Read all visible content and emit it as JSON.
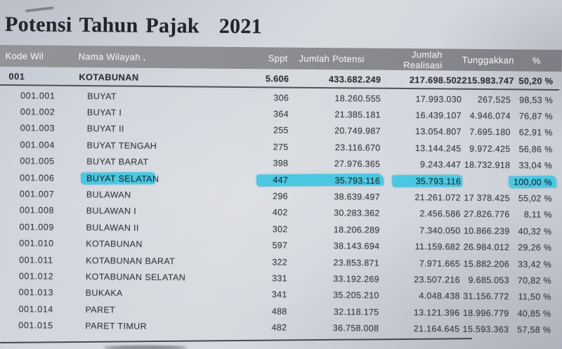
{
  "title": {
    "text": "Potensi Tahun Pajak",
    "year": "2021"
  },
  "table": {
    "headers": {
      "kode": "Kode Wil",
      "nama": "Nama Wilayah ,",
      "sppt": "Sppt",
      "potensi": "Jumlah Potensi",
      "realisasi": "Jumlah Realisasi",
      "tunggakkan": "Tunggakkan",
      "pct": "%"
    },
    "summary": {
      "kode": "001",
      "nama": "KOTABUNAN",
      "sppt": "5.606",
      "potensi": "433.682.249",
      "realisasi": "217.698.502",
      "tunggakkan": "215.983.747",
      "pct": "50,20 %"
    },
    "rows": [
      {
        "kode": "001.001",
        "nama": "BUYAT",
        "sppt": "306",
        "potensi": "18.260.555",
        "realisasi": "17.993.030",
        "tunggakkan": "267.525",
        "pct": "98,53 %",
        "highlight": false
      },
      {
        "kode": "001.002",
        "nama": "BUYAT I",
        "sppt": "364",
        "potensi": "21.385.181",
        "realisasi": "16.439.107",
        "tunggakkan": "4.946.074",
        "pct": "76,87 %",
        "highlight": false
      },
      {
        "kode": "001.003",
        "nama": "BUYAT II",
        "sppt": "255",
        "potensi": "20.749.987",
        "realisasi": "13.054.807",
        "tunggakkan": "7.695.180",
        "pct": "62,91 %",
        "highlight": false
      },
      {
        "kode": "001.004",
        "nama": "BUYAT TENGAH",
        "sppt": "275",
        "potensi": "23.116.670",
        "realisasi": "13.144.245",
        "tunggakkan": "9.972.425",
        "pct": "56,86 %",
        "highlight": false
      },
      {
        "kode": "001.005",
        "nama": "BUYAT BARAT",
        "sppt": "398",
        "potensi": "27.976.365",
        "realisasi": "9.243.447",
        "tunggakkan": "18.732.918",
        "pct": "33,04 %",
        "highlight": false
      },
      {
        "kode": "001.006",
        "nama": "BUYAT SELATAN",
        "sppt": "447",
        "potensi": "35.793.116",
        "realisasi": "35.793.116",
        "tunggakkan": "",
        "pct": "100,00 %",
        "highlight": true
      },
      {
        "kode": "001.007",
        "nama": "BULAWAN",
        "sppt": "296",
        "potensi": "38.639.497",
        "realisasi": "21.261.072",
        "tunggakkan": "17 378.425",
        "pct": "55,02 %",
        "highlight": false
      },
      {
        "kode": "001.008",
        "nama": "BULAWAN I",
        "sppt": "402",
        "potensi": "30.283.362",
        "realisasi": "2.456.586",
        "tunggakkan": "27.826.776",
        "pct": "8,11 %",
        "highlight": false
      },
      {
        "kode": "001.009",
        "nama": "BULAWAN II",
        "sppt": "302",
        "potensi": "18.206.289",
        "realisasi": "7.340.050",
        "tunggakkan": "10.866.239",
        "pct": "40,32 %",
        "highlight": false
      },
      {
        "kode": "001.010",
        "nama": "KOTABUNAN",
        "sppt": "597",
        "potensi": "38.143.694",
        "realisasi": "11.159.682",
        "tunggakkan": "26.984.012",
        "pct": "29,26 %",
        "highlight": false
      },
      {
        "kode": "001.011",
        "nama": "KOTABUNAN BARAT",
        "sppt": "322",
        "potensi": "23.853.871",
        "realisasi": "7.971.665",
        "tunggakkan": "15.882.206",
        "pct": "33,42 %",
        "highlight": false
      },
      {
        "kode": "001.012",
        "nama": "KOTABUNAN SELATAN",
        "sppt": "331",
        "potensi": "33.192.269",
        "realisasi": "23.507.216",
        "tunggakkan": "9.685.053",
        "pct": "70,82 %",
        "highlight": false
      },
      {
        "kode": "001.013",
        "nama": "BUKAKA",
        "sppt": "341",
        "potensi": "35.205.210",
        "realisasi": "4.048.438",
        "tunggakkan": "31.156.772",
        "pct": "11,50 %",
        "highlight": false
      },
      {
        "kode": "001.014",
        "nama": "PARET",
        "sppt": "488",
        "potensi": "32.118.175",
        "realisasi": "13.121.396",
        "tunggakkan": "18.996.779",
        "pct": "40,85 %",
        "highlight": false
      },
      {
        "kode": "001.015",
        "nama": "PARET TIMUR",
        "sppt": "482",
        "potensi": "36.758.008",
        "realisasi": "21.164.645",
        "tunggakkan": "15.593.363",
        "pct": "57,58 %",
        "highlight": false
      }
    ]
  },
  "colors": {
    "highlight_marker": "#4cc7e1",
    "header_bg": "#8b8c90",
    "rule_line": "#3f4247",
    "paper": "#d3d7dd",
    "text": "#383b40"
  }
}
